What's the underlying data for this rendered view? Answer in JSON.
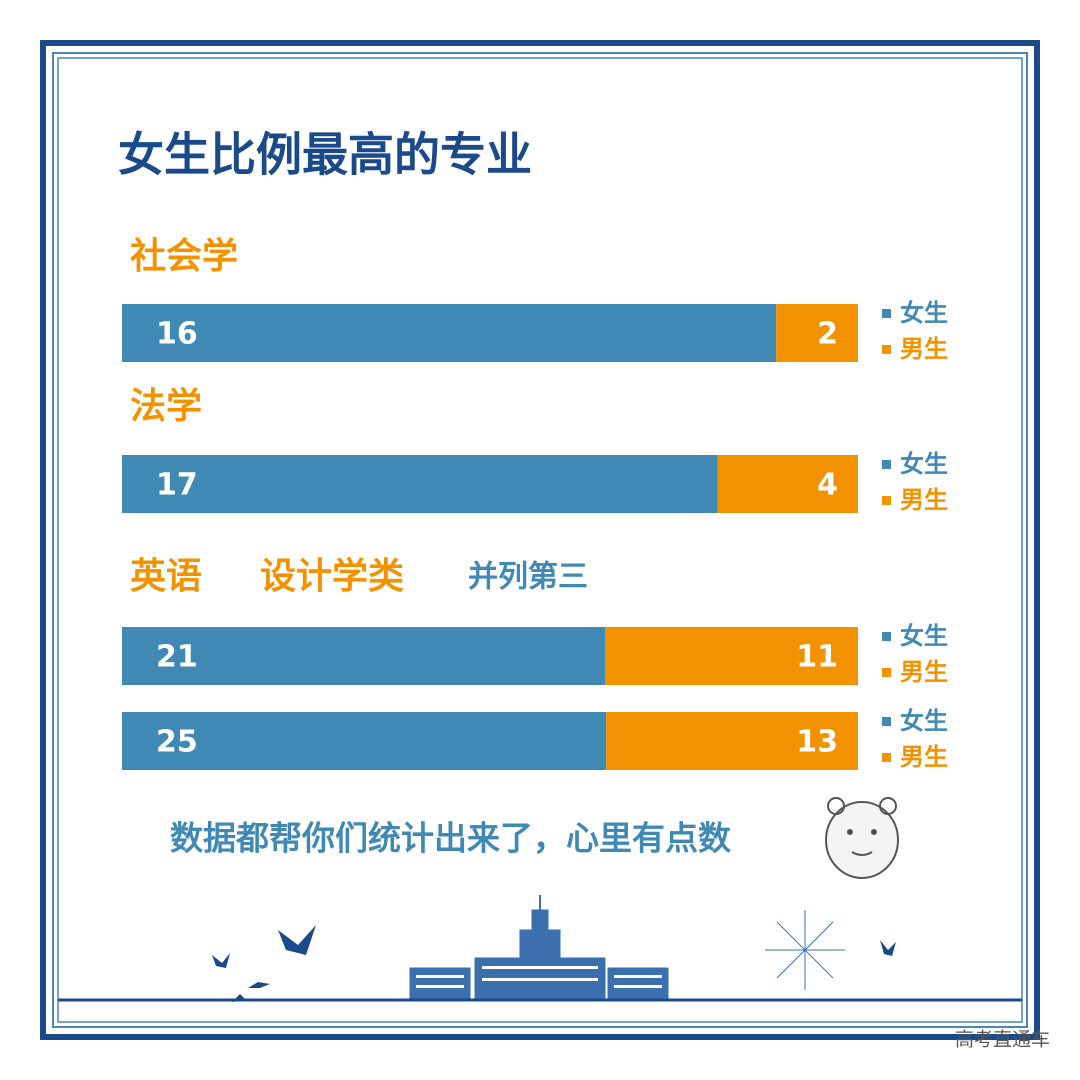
{
  "chart_data": {
    "type": "bar",
    "stacked": "percent",
    "orientation": "horizontal",
    "title": "女生比例最高的专业",
    "categories": [
      "社会学",
      "法学",
      "英语",
      "设计学类"
    ],
    "series": [
      {
        "name": "女生",
        "color": "#4189b5",
        "values": [
          16,
          17,
          21,
          25
        ]
      },
      {
        "name": "男生",
        "color": "#f39200",
        "values": [
          2,
          4,
          11,
          13
        ]
      }
    ],
    "note": "并列第三"
  },
  "footer": "数据都帮你们统计出来了，心里有点数",
  "watermark": "高考直通车"
}
